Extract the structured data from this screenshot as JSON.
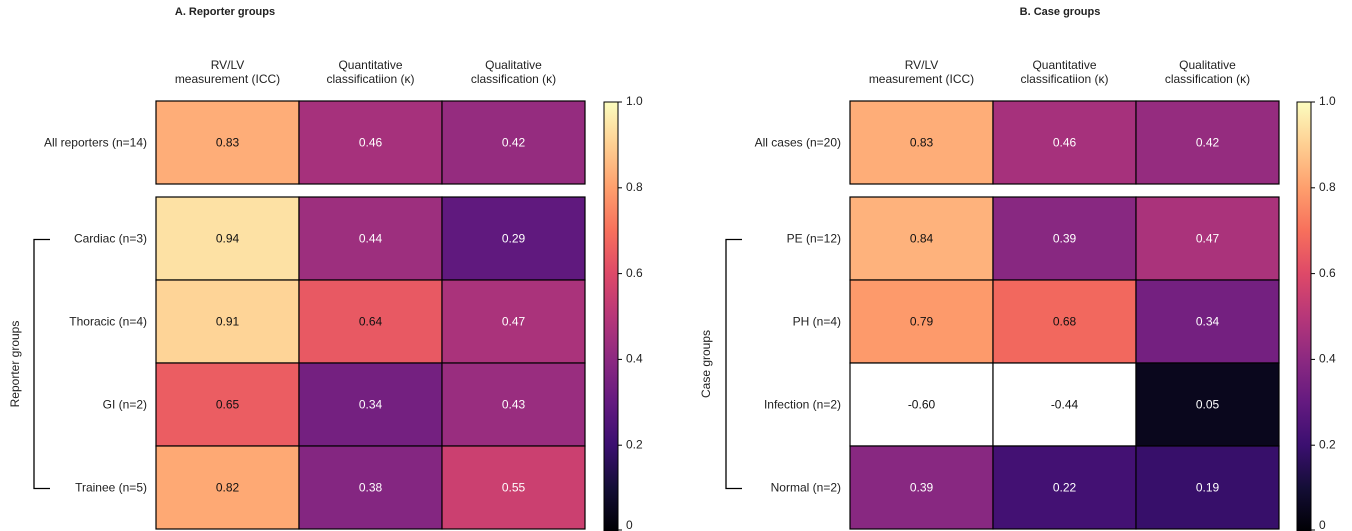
{
  "chart_data": [
    {
      "type": "heatmap",
      "title": "A. Reporter groups",
      "columns": [
        "RV/LV\nmeasurement (ICC)",
        "Quantitative\nclassificatiion (κ)",
        "Qualitative\nclassification (κ)"
      ],
      "top_row": {
        "label": "All reporters (n=14)",
        "values": [
          0.83,
          0.46,
          0.42
        ]
      },
      "rows": [
        {
          "label": "Cardiac (n=3)",
          "values": [
            0.94,
            0.44,
            0.29
          ]
        },
        {
          "label": "Thoracic (n=4)",
          "values": [
            0.91,
            0.64,
            0.47
          ]
        },
        {
          "label": "GI (n=2)",
          "values": [
            0.65,
            0.34,
            0.43
          ]
        },
        {
          "label": "Trainee (n=5)",
          "values": [
            0.82,
            0.38,
            0.55
          ]
        }
      ],
      "value_labels": {
        "top_row": [
          "0.83",
          "0.46",
          "0.42"
        ],
        "rows": [
          [
            "0.94",
            "0.44",
            "0.29"
          ],
          [
            "0.91",
            "0.64",
            "0.47"
          ],
          [
            "0.65",
            "0.34",
            "0.43"
          ],
          [
            "0.82",
            "0.38",
            "0.55"
          ]
        ]
      },
      "group_label": "Reporter groups",
      "colorbar": {
        "min": 0,
        "max": 1.0,
        "ticks": [
          "0",
          "0.2",
          "0.4",
          "0.6",
          "0.8",
          "1.0"
        ],
        "colormap": "magma"
      }
    },
    {
      "type": "heatmap",
      "title": "B. Case groups",
      "columns": [
        "RV/LV\nmeasurement (ICC)",
        "Quantitative\nclassificatiion (κ)",
        "Qualitative\nclassification (κ)"
      ],
      "top_row": {
        "label": "All cases (n=20)",
        "values": [
          0.83,
          0.46,
          0.42
        ]
      },
      "rows": [
        {
          "label": "PE (n=12)",
          "values": [
            0.84,
            0.39,
            0.47
          ]
        },
        {
          "label": "PH (n=4)",
          "values": [
            0.79,
            0.68,
            0.34
          ]
        },
        {
          "label": "Infection (n=2)",
          "values": [
            -0.6,
            -0.44,
            0.05
          ]
        },
        {
          "label": "Normal (n=2)",
          "values": [
            0.39,
            0.22,
            0.19
          ]
        }
      ],
      "value_labels": {
        "top_row": [
          "0.83",
          "0.46",
          "0.42"
        ],
        "rows": [
          [
            "0.84",
            "0.39",
            "0.47"
          ],
          [
            "0.79",
            "0.68",
            "0.34"
          ],
          [
            "-0.60",
            "-0.44",
            "0.05"
          ],
          [
            "0.39",
            "0.22",
            "0.19"
          ]
        ]
      },
      "group_label": "Case groups",
      "colorbar": {
        "min": 0,
        "max": 1.0,
        "ticks": [
          "0",
          "0.2",
          "0.4",
          "0.6",
          "0.8",
          "1.0"
        ],
        "colormap": "magma"
      }
    }
  ]
}
